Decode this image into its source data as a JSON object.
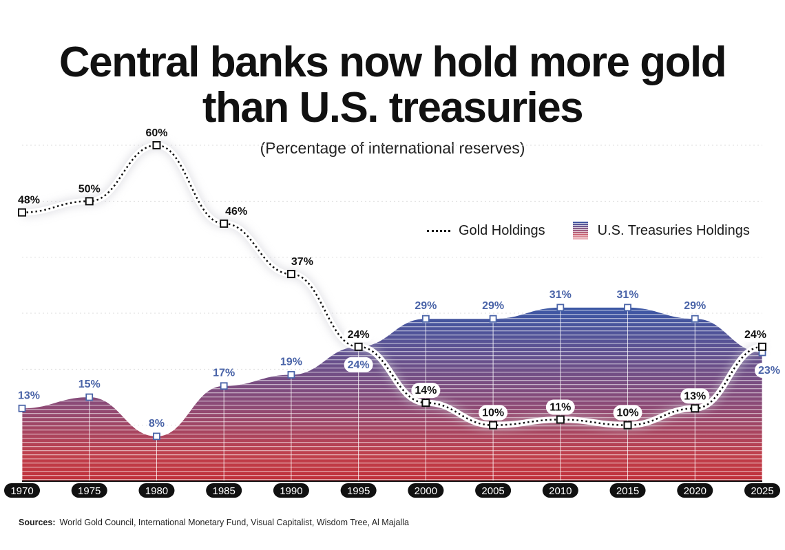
{
  "title_line1": "Central banks now hold more gold",
  "title_line2": "than U.S. treasuries",
  "subtitle": "(Percentage of international reserves)",
  "sources_label": "Sources:",
  "sources_text": "World Gold Council, International Monetary Fund, Visual Capitalist, Wisdom Tree, Al Majalla",
  "colors": {
    "gold_line": "#111111",
    "treasury_top": "#3b57a5",
    "treasury_bottom": "#c0303a",
    "treasury_label": "#4a64a8"
  },
  "chart_data": {
    "type": "line",
    "title": "Central banks now hold more gold than U.S. treasuries",
    "subtitle": "(Percentage of international reserves)",
    "xlabel": "",
    "ylabel": "Percentage of international reserves",
    "ylim": [
      0,
      60
    ],
    "grid": true,
    "legend_position": "top-right",
    "x": [
      "1970",
      "1975",
      "1980",
      "1985",
      "1990",
      "1995",
      "2000",
      "2005",
      "2010",
      "2015",
      "2020",
      "2025"
    ],
    "series": [
      {
        "name": "Gold Holdings",
        "style": "dotted-line",
        "values": [
          48,
          50,
          60,
          46,
          37,
          24,
          14,
          10,
          11,
          10,
          13,
          24
        ]
      },
      {
        "name": "U.S. Treasuries Holdings",
        "style": "area",
        "values": [
          13,
          15,
          8,
          17,
          19,
          24,
          29,
          29,
          31,
          31,
          29,
          23
        ]
      }
    ]
  }
}
